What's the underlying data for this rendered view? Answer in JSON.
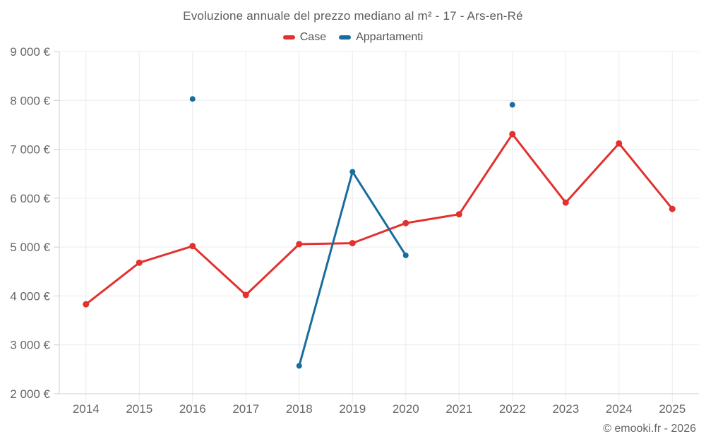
{
  "header": {
    "title": "Evoluzione annuale del prezzo mediano al m² - 17 - Ars-en-Ré"
  },
  "footer": {
    "credit": "© emooki.fr - 2026"
  },
  "chart_data": {
    "type": "line",
    "title": "Evoluzione annuale del prezzo mediano al m² - 17 - Ars-en-Ré",
    "xlabel": "",
    "ylabel": "",
    "categories": [
      "2014",
      "2015",
      "2016",
      "2017",
      "2018",
      "2019",
      "2020",
      "2021",
      "2022",
      "2023",
      "2024",
      "2025"
    ],
    "series": [
      {
        "name": "Case",
        "color": "#e2312e",
        "marker_radius": 4.5,
        "line_width": 3,
        "values": [
          3830,
          4680,
          5020,
          4020,
          5060,
          5080,
          5490,
          5670,
          7310,
          5910,
          7120,
          5780
        ]
      },
      {
        "name": "Appartamenti",
        "color": "#186d9e",
        "marker_radius": 4,
        "line_width": 3,
        "values": [
          null,
          null,
          8030,
          null,
          2570,
          6540,
          4830,
          null,
          7910,
          null,
          null,
          null
        ]
      }
    ],
    "ylim": [
      2000,
      9000
    ],
    "ytick_step": 1000,
    "ytick_labels": [
      "2 000 €",
      "3 000 €",
      "4 000 €",
      "5 000 €",
      "6 000 €",
      "7 000 €",
      "8 000 €",
      "9 000 €"
    ],
    "legend_position": "top",
    "grid": true,
    "colors": {
      "grid": "#ebebeb",
      "axis": "#cfcfcf",
      "tick_label": "#666666",
      "title_text": "#5c5c5c"
    }
  }
}
